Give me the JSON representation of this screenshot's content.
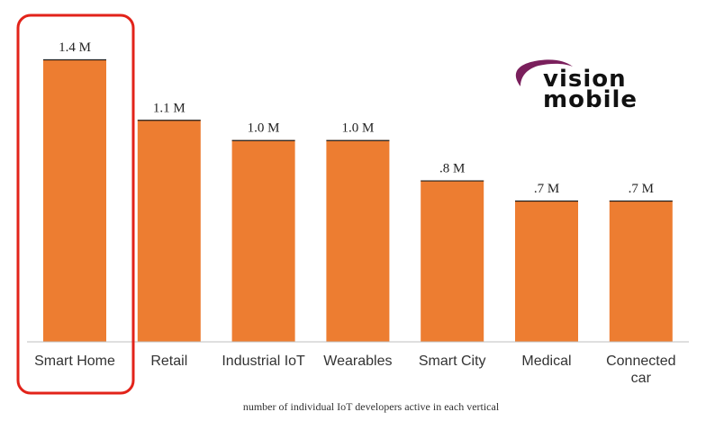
{
  "chart_data": {
    "type": "bar",
    "categories": [
      "Smart Home",
      "Retail",
      "Industrial IoT",
      "Wearables",
      "Smart City",
      "Medical",
      "Connected car"
    ],
    "values": [
      1.4,
      1.1,
      1.0,
      1.0,
      0.8,
      0.7,
      0.7
    ],
    "value_labels": [
      "1.4 M",
      "1.1 M",
      "1.0 M",
      "1.0 M",
      ".8 M",
      ".7 M",
      ".7 M"
    ],
    "unit": "M",
    "caption": "number of individual IoT developers active in each vertical",
    "highlighted_category": "Smart Home",
    "ylim": [
      0,
      1.4
    ],
    "grid": false,
    "colors": {
      "bar": "#ED7D31",
      "bar_edge": "#1f1f1f",
      "highlight": "#E2231A",
      "axis": "#BFBFBF"
    }
  },
  "logo": {
    "line1": "vision",
    "line2": "mobile",
    "swoosh_color": "#7A1F5C"
  }
}
